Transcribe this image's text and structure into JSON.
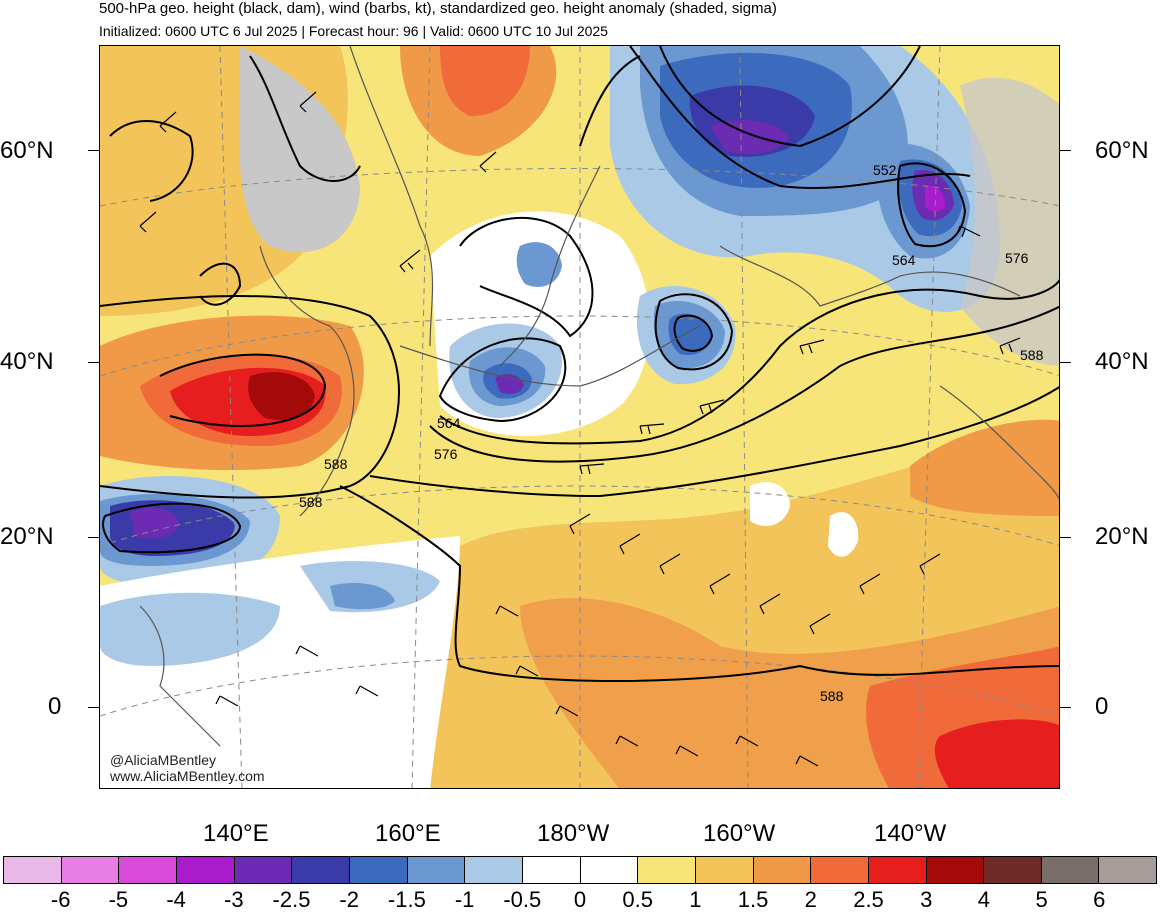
{
  "header": {
    "title": "500-hPa geo. height (black, dam), wind (barbs, kt), standardized geo. height anomaly (shaded, sigma)",
    "subtitle": "Initialized: 0600 UTC 6 Jul 2025 | Forecast hour: 96 | Valid: 0600 UTC 10 Jul 2025"
  },
  "map": {
    "lat_labels": [
      "60°N",
      "40°N",
      "20°N",
      "0"
    ],
    "lon_labels": [
      "140°E",
      "160°E",
      "180°W",
      "160°W",
      "140°W"
    ],
    "contour_labels": [
      "552",
      "564",
      "576",
      "588",
      "564",
      "576",
      "588",
      "588",
      "588",
      "588"
    ],
    "watermark": [
      "@AliciaMBentley",
      "www.AliciaMBentley.com"
    ]
  },
  "colorbar": {
    "labels": [
      "-6",
      "-5",
      "-4",
      "-3",
      "-2.5",
      "-2",
      "-1.5",
      "-1",
      "-0.5",
      "0",
      "0.5",
      "1",
      "1.5",
      "2",
      "2.5",
      "3",
      "4",
      "5",
      "6"
    ],
    "colors": [
      "#e8b8e6",
      "#e67ee4",
      "#d84ad8",
      "#a81ccc",
      "#6b2bb2",
      "#3a3aa8",
      "#3c6bbd",
      "#6c98d2",
      "#a9c9e6",
      "#ffffff",
      "#ffffff",
      "#f8e57a",
      "#f2c45a",
      "#f09a48",
      "#f06a3a",
      "#e61e1e",
      "#a40a0a",
      "#6e2a26",
      "#7a6e6a",
      "#a69c9a"
    ]
  }
}
